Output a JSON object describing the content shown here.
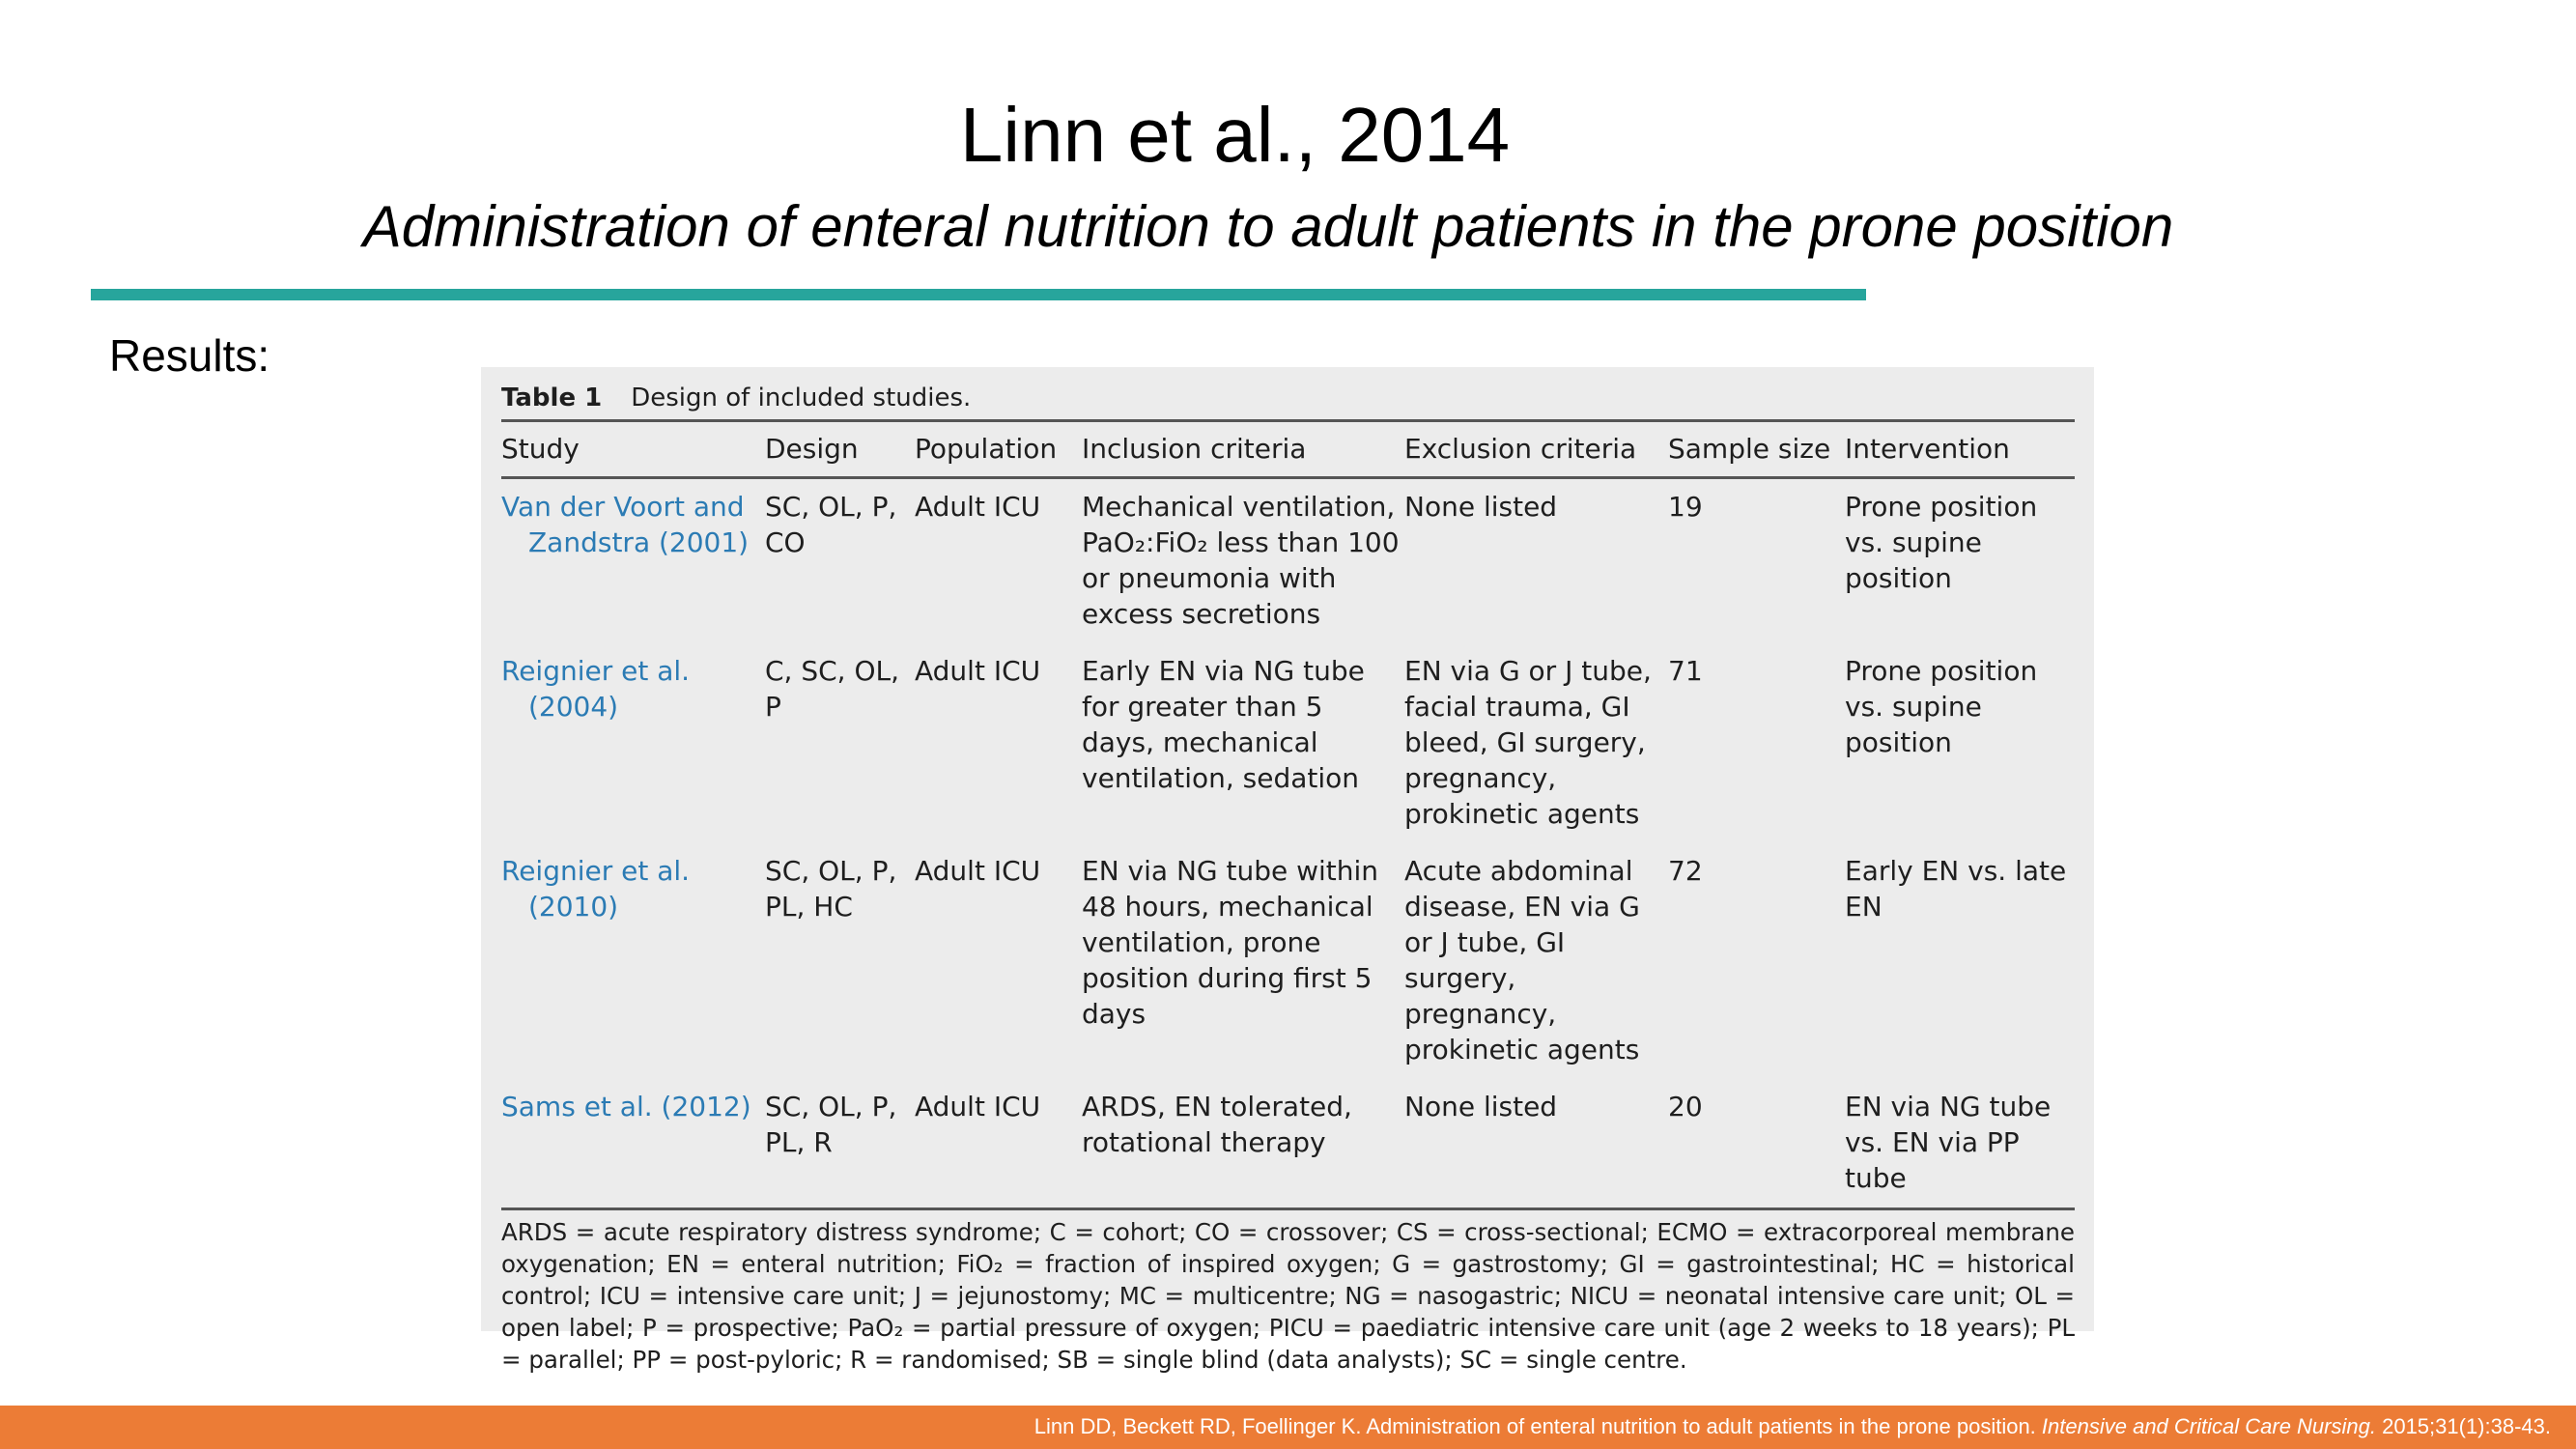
{
  "slide": {
    "title": "Linn et al., 2014",
    "subtitle": "Administration of enteral nutrition to adult patients in the prone position",
    "section_label": "Results:",
    "accent_color": "#27a59c",
    "footer_color": "#ec7c36"
  },
  "table": {
    "caption_label": "Table 1",
    "caption_text": "Design of included studies.",
    "columns": [
      "Study",
      "Design",
      "Population",
      "Inclusion criteria",
      "Exclusion criteria",
      "Sample size",
      "Intervention"
    ],
    "rows": [
      {
        "study": "Van der Voort and Zandstra (2001)",
        "design": "SC, OL, P, CO",
        "population": "Adult ICU",
        "inclusion": "Mechanical ventilation, PaO₂:FiO₂ less than 100 or pneumonia with excess secretions",
        "exclusion": "None listed",
        "sample_size": "19",
        "intervention": "Prone position vs. supine position"
      },
      {
        "study": "Reignier et al. (2004)",
        "design": "C, SC, OL, P",
        "population": "Adult ICU",
        "inclusion": "Early EN via NG tube for greater than 5 days, mechanical ventilation, sedation",
        "exclusion": "EN via G or J tube, facial trauma, GI bleed, GI surgery, pregnancy, prokinetic agents",
        "sample_size": "71",
        "intervention": "Prone position vs. supine position"
      },
      {
        "study": "Reignier et al. (2010)",
        "design": "SC, OL, P, PL, HC",
        "population": "Adult ICU",
        "inclusion": "EN via NG tube within 48 hours, mechanical ventilation, prone position during first 5 days",
        "exclusion": "Acute abdominal disease, EN via G or J tube, GI surgery, pregnancy, prokinetic agents",
        "sample_size": "72",
        "intervention": "Early EN vs. late EN"
      },
      {
        "study": "Sams et al. (2012)",
        "design": "SC, OL, P, PL, R",
        "population": "Adult ICU",
        "inclusion": "ARDS, EN tolerated, rotational therapy",
        "exclusion": "None listed",
        "sample_size": "20",
        "intervention": "EN via NG tube vs. EN via PP tube"
      }
    ],
    "footnote": "ARDS = acute respiratory distress syndrome; C = cohort; CO = crossover; CS = cross-sectional; ECMO = extracorporeal membrane oxygenation; EN = enteral nutrition; FiO₂ = fraction of inspired oxygen; G = gastrostomy; GI = gastrointestinal; HC = historical control; ICU = intensive care unit; J = jejunostomy; MC = multicentre; NG = nasogastric; NICU = neonatal intensive care unit; OL = open label; P = prospective; PaO₂ = partial pressure of oxygen; PICU = paediatric intensive care unit (age 2 weeks to 18 years); PL = parallel; PP = post-pyloric; R = randomised; SB = single blind (data analysts); SC = single centre."
  },
  "footer": {
    "citation": "Linn DD, Beckett RD, Foellinger K. Administration of enteral nutrition to adult patients in the prone position.",
    "journal": "Intensive and Critical Care Nursing.",
    "volume": "2015;31(1):38-43."
  }
}
